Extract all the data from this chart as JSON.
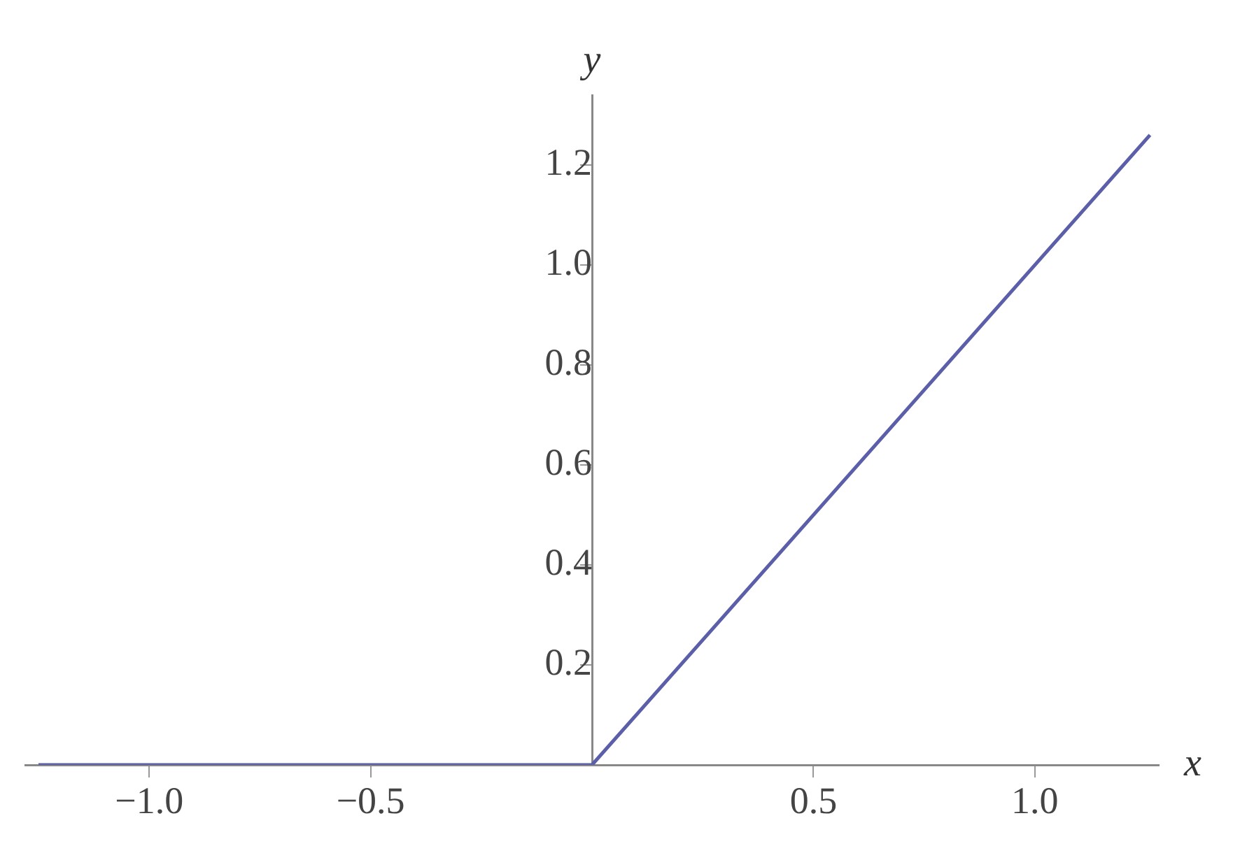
{
  "chart_data": {
    "type": "line",
    "xlabel": "x",
    "ylabel": "y",
    "x": [
      -1.25,
      0,
      1.26
    ],
    "series": [
      {
        "color": "#5b5ea8",
        "values": [
          0,
          0,
          1.26
        ]
      }
    ],
    "xlim": [
      -1.28,
      1.28
    ],
    "ylim": [
      0,
      1.34
    ],
    "xticks": [
      {
        "value": -1,
        "label": "−1.0"
      },
      {
        "value": -0.5,
        "label": "−0.5"
      },
      {
        "value": 0.5,
        "label": "0.5"
      },
      {
        "value": 1,
        "label": "1.0"
      }
    ],
    "yticks": [
      {
        "value": 0.2,
        "label": "0.2"
      },
      {
        "value": 0.4,
        "label": "0.4"
      },
      {
        "value": 0.6,
        "label": "0.6"
      },
      {
        "value": 0.8,
        "label": "0.8"
      },
      {
        "value": 1,
        "label": "1.0"
      },
      {
        "value": 1.2,
        "label": "1.2"
      }
    ],
    "grid": false,
    "legend": false,
    "marker": "none",
    "line_style": "solid"
  }
}
